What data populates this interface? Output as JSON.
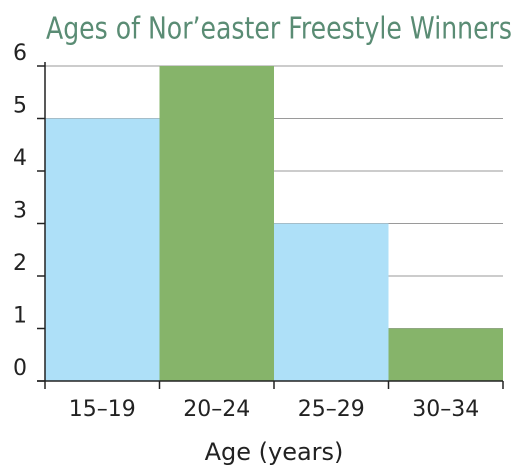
{
  "chart_data": {
    "type": "bar",
    "title": "Ages of Nor’easter Freestyle Winners",
    "x_label": "Age (years)",
    "categories": [
      "15–19",
      "20–24",
      "25–29",
      "30–34"
    ],
    "values": [
      5,
      6,
      3,
      1
    ],
    "colors": [
      "#aee0f8",
      "#86b46a",
      "#aee0f8",
      "#86b46a"
    ],
    "ylim": [
      0,
      6
    ],
    "yticks": [
      0,
      1,
      2,
      3,
      4,
      5,
      6
    ],
    "grid": true
  }
}
